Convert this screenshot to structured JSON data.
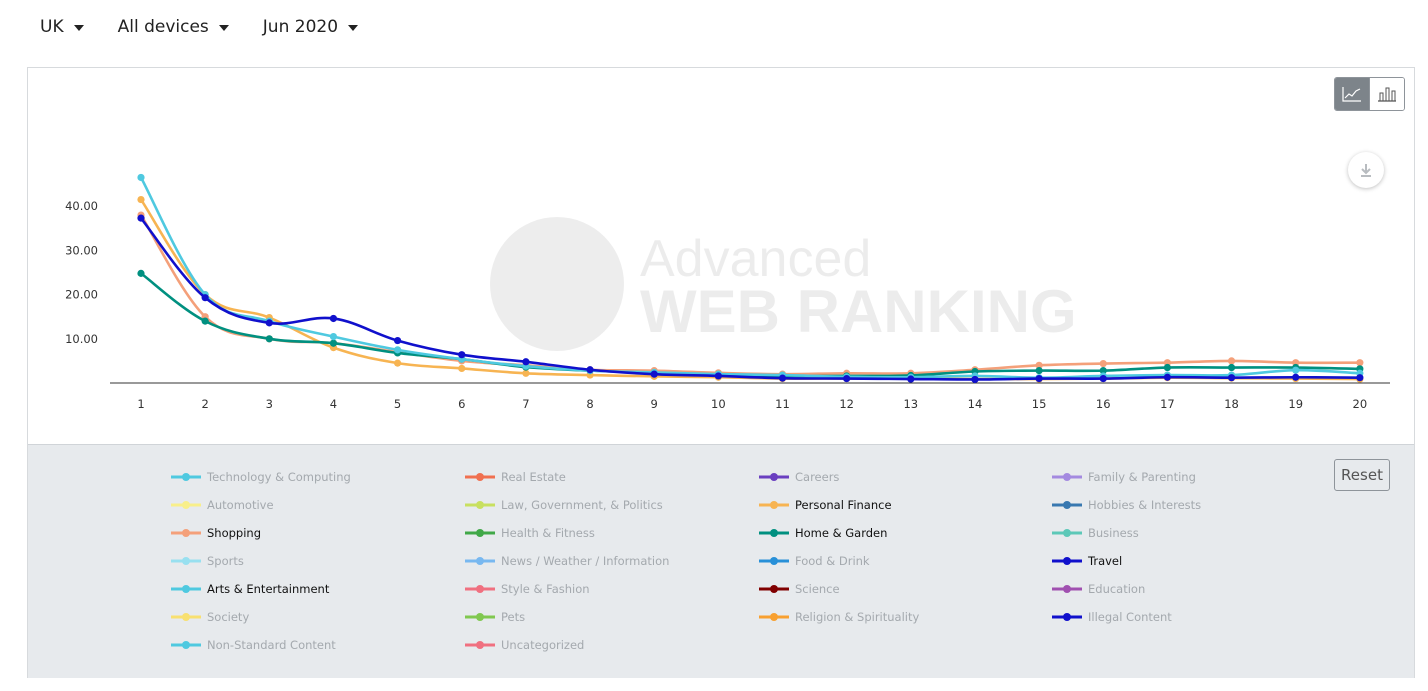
{
  "filters": {
    "country": "UK",
    "device": "All devices",
    "period": "Jun 2020"
  },
  "reset_label": "Reset",
  "icons": {
    "line_view": "line-chart-icon",
    "bar_view": "bar-chart-icon",
    "download": "download-icon",
    "dropdown": "caret-down-icon"
  },
  "chart_data": {
    "type": "line",
    "x": [
      1,
      2,
      3,
      4,
      5,
      6,
      7,
      8,
      9,
      10,
      11,
      12,
      13,
      14,
      15,
      16,
      17,
      18,
      19,
      20
    ],
    "y_ticks": [
      "10.00",
      "20.00",
      "30.00",
      "40.00"
    ],
    "ylim": [
      0,
      55
    ],
    "watermark": [
      "Advanced",
      "WEB RANKING"
    ],
    "series": [
      {
        "name": "Shopping",
        "color": "#f4a07a",
        "values": [
          38,
          15,
          10,
          9,
          7,
          5,
          4,
          3,
          2.8,
          2.3,
          2,
          2.2,
          2.2,
          3,
          4,
          4.4,
          4.6,
          5,
          4.6,
          4.6
        ]
      },
      {
        "name": "Personal Finance",
        "color": "#f7b452",
        "values": [
          41.5,
          20,
          14.8,
          8,
          4.5,
          3.3,
          2.2,
          1.8,
          1.5,
          1.3,
          1,
          1,
          1,
          0.9,
          0.9,
          1,
          1.2,
          1.1,
          1,
          0.9
        ]
      },
      {
        "name": "Home & Garden",
        "color": "#009080",
        "values": [
          24.8,
          14,
          10,
          9,
          6.8,
          5.4,
          3.6,
          2.8,
          2.3,
          1.8,
          1.6,
          1.6,
          1.7,
          2.6,
          2.8,
          2.8,
          3.5,
          3.5,
          3.5,
          3.2
        ]
      },
      {
        "name": "Arts & Entertainment",
        "color": "#4fc9e0",
        "values": [
          46.5,
          20,
          14,
          10.5,
          7.5,
          5.4,
          3.8,
          2.8,
          2.4,
          2,
          1.8,
          1.4,
          1.3,
          1.6,
          1.2,
          1.6,
          1.8,
          1.8,
          2.9,
          2.2
        ]
      },
      {
        "name": "Travel",
        "color": "#1010cc",
        "values": [
          37.3,
          19.3,
          13.6,
          14.6,
          9.6,
          6.4,
          4.8,
          3,
          2,
          1.6,
          1.1,
          1,
          0.9,
          0.8,
          1,
          1,
          1.3,
          1.2,
          1.3,
          1.2
        ]
      }
    ]
  },
  "legend": [
    {
      "label": "Technology & Computing",
      "color": "#4fc9e0",
      "active": false
    },
    {
      "label": "Real Estate",
      "color": "#f07050",
      "active": false
    },
    {
      "label": "Careers",
      "color": "#6a3fc0",
      "active": false
    },
    {
      "label": "Family & Parenting",
      "color": "#a48ae0",
      "active": false
    },
    {
      "label": "Automotive",
      "color": "#f8ef8a",
      "active": false
    },
    {
      "label": "Law, Government, & Politics",
      "color": "#c8e060",
      "active": false
    },
    {
      "label": "Personal Finance",
      "color": "#f7b452",
      "active": true
    },
    {
      "label": "Hobbies & Interests",
      "color": "#3878b0",
      "active": false
    },
    {
      "label": "Shopping",
      "color": "#f4a07a",
      "active": true
    },
    {
      "label": "Health & Fitness",
      "color": "#40a848",
      "active": false
    },
    {
      "label": "Home & Garden",
      "color": "#009080",
      "active": true
    },
    {
      "label": "Business",
      "color": "#5cc8b8",
      "active": false
    },
    {
      "label": "Sports",
      "color": "#98e0f0",
      "active": false
    },
    {
      "label": "News / Weather / Information",
      "color": "#78b8f0",
      "active": false
    },
    {
      "label": "Food & Drink",
      "color": "#2890d8",
      "active": false
    },
    {
      "label": "Travel",
      "color": "#1010cc",
      "active": true
    },
    {
      "label": "Arts & Entertainment",
      "color": "#4fc9e0",
      "active": true
    },
    {
      "label": "Style & Fashion",
      "color": "#f07080",
      "active": false
    },
    {
      "label": "Science",
      "color": "#800000",
      "active": false
    },
    {
      "label": "Education",
      "color": "#a050b0",
      "active": false
    },
    {
      "label": "Society",
      "color": "#f8e070",
      "active": false
    },
    {
      "label": "Pets",
      "color": "#80c850",
      "active": false
    },
    {
      "label": "Religion & Spirituality",
      "color": "#f8a030",
      "active": false
    },
    {
      "label": "Illegal Content",
      "color": "#1010cc",
      "active": false
    },
    {
      "label": "Non-Standard Content",
      "color": "#4fc9e0",
      "active": false
    },
    {
      "label": "Uncategorized",
      "color": "#f07080",
      "active": false
    }
  ]
}
